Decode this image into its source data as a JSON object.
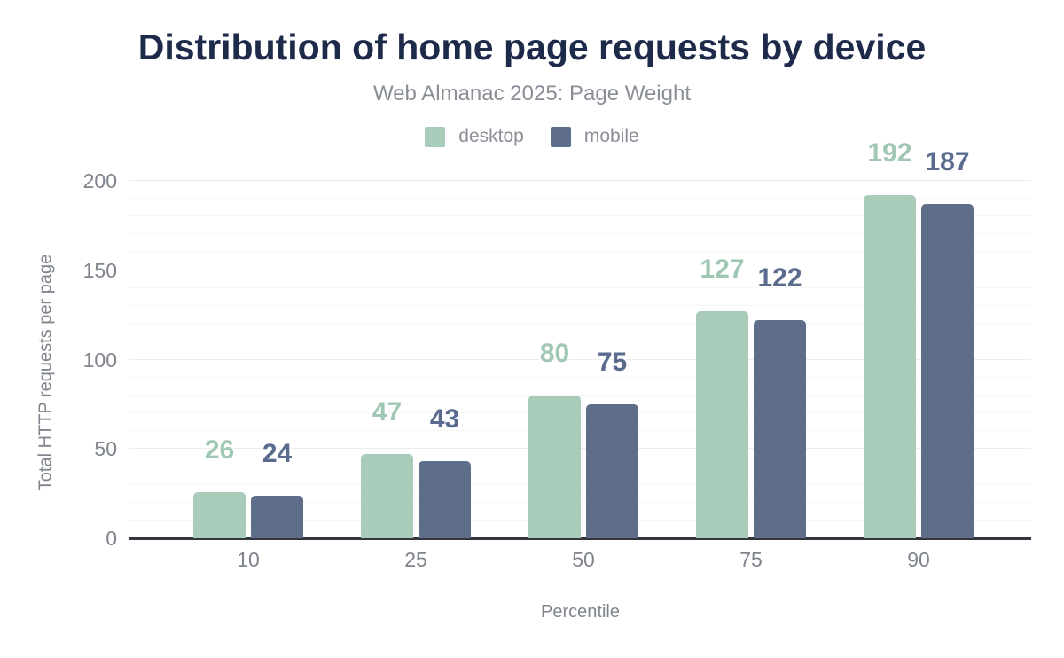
{
  "chart_data": {
    "type": "bar",
    "title": "Distribution of home page requests by device",
    "subtitle": "Web Almanac 2025: Page Weight",
    "xlabel": "Percentile",
    "ylabel": "Total HTTP requests per page",
    "categories": [
      "10",
      "25",
      "50",
      "75",
      "90"
    ],
    "series": [
      {
        "name": "desktop",
        "color": "#a8cbba",
        "label_color": "#a0c7b3",
        "values": [
          26,
          47,
          80,
          127,
          192
        ]
      },
      {
        "name": "mobile",
        "color": "#5e6e8a",
        "label_color": "#5a6b8e",
        "values": [
          24,
          43,
          75,
          122,
          187
        ]
      }
    ],
    "ylim": [
      0,
      200
    ],
    "yticks": [
      0,
      50,
      100,
      150,
      200
    ],
    "minor_grid_step": 10,
    "grid": "horizontal",
    "legend_position": "top",
    "value_labels": true
  },
  "colors": {
    "title": "#1e2a4a",
    "subtitle_text": "#8a8e96",
    "tick_text": "#7f848d",
    "axis_line": "#33363d",
    "background": "#ffffff"
  }
}
